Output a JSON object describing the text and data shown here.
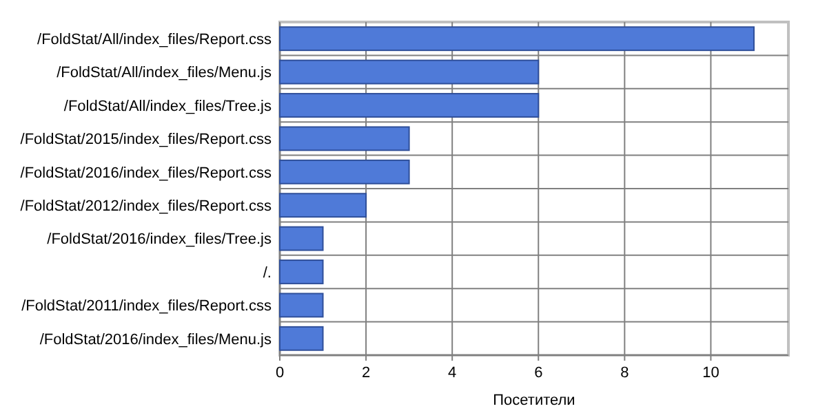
{
  "chart_data": {
    "type": "bar",
    "orientation": "horizontal",
    "xlabel": "Посетители",
    "categories": [
      "/FoldStat/All/index_files/Report.css",
      "/FoldStat/All/index_files/Menu.js",
      "/FoldStat/All/index_files/Tree.js",
      "/FoldStat/2015/index_files/Report.css",
      "/FoldStat/2016/index_files/Report.css",
      "/FoldStat/2012/index_files/Report.css",
      "/FoldStat/2016/index_files/Tree.js",
      "/.",
      "/FoldStat/2011/index_files/Report.css",
      "/FoldStat/2016/index_files/Menu.js"
    ],
    "values": [
      11,
      6,
      6,
      3,
      3,
      2,
      1,
      1,
      1,
      1
    ],
    "color": "#4f7ad8",
    "xlim": [
      0,
      11.8
    ],
    "xticks": [
      0,
      2,
      4,
      6,
      8,
      10
    ],
    "grid": true
  }
}
